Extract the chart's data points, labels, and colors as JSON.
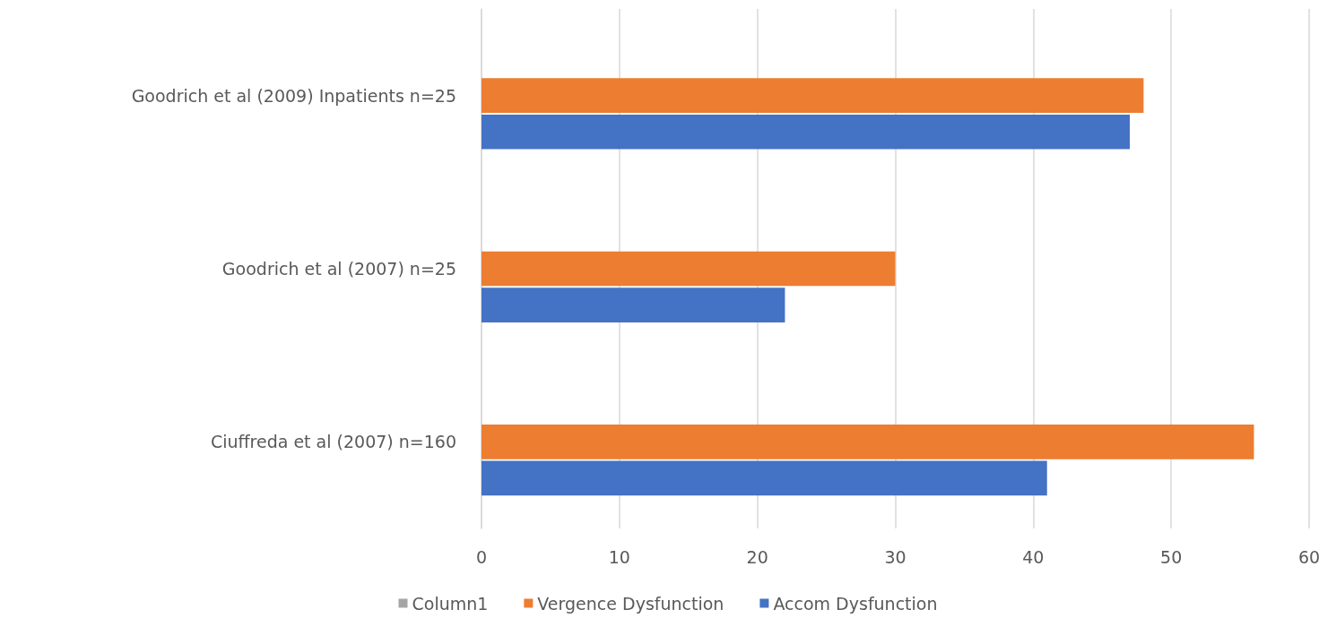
{
  "chart_data": {
    "type": "bar",
    "orientation": "horizontal",
    "categories": [
      "Goodrich et al (2009) Inpatients n=25",
      "Goodrich et al (2007) n=25",
      "Ciuffreda et al (2007) n=160"
    ],
    "series": [
      {
        "name": "Column1",
        "color": "#a5a5a5",
        "values": [
          null,
          null,
          null
        ]
      },
      {
        "name": "Vergence Dysfunction",
        "color": "#ed7d31",
        "values": [
          48,
          30,
          56
        ]
      },
      {
        "name": "Accom Dysfunction",
        "color": "#4472c4",
        "values": [
          47,
          22,
          41
        ]
      }
    ],
    "xlim": [
      0,
      60
    ],
    "xticks": [
      0,
      10,
      20,
      30,
      40,
      50,
      60
    ],
    "grid": "x",
    "legend": "bottom"
  }
}
